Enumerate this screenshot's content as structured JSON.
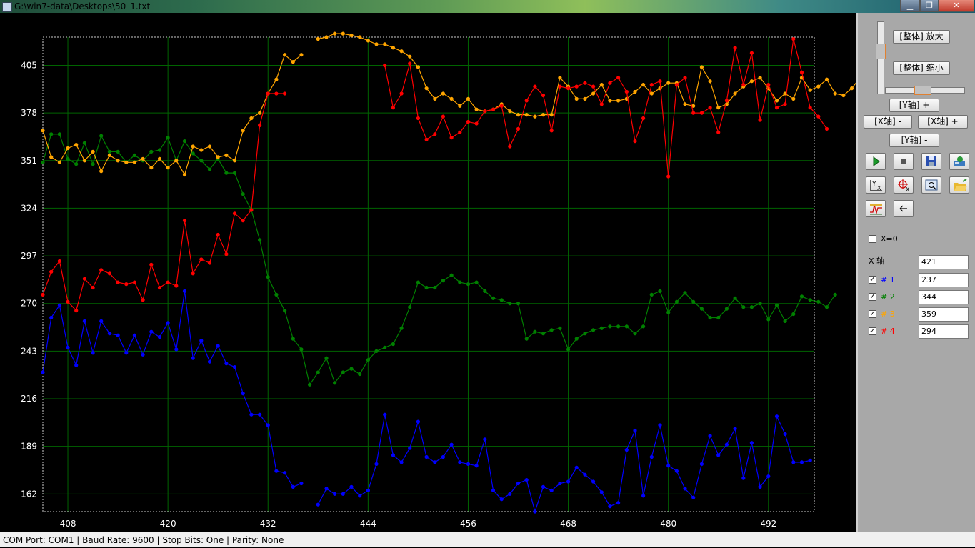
{
  "window": {
    "title": "G:\\win7-data\\Desktops\\50_1.txt",
    "min_glyph": "▁",
    "max_glyph": "❐",
    "close_glyph": "✕"
  },
  "status": "COM Port: COM1 | Baud Rate: 9600 | Stop Bits: One |  Parity: None",
  "panel": {
    "zoom_in_label": "[整体] 放大",
    "zoom_out_label": "[整体] 缩小",
    "y_plus_label": "[Y轴] +",
    "x_minus_label": "[X轴] -",
    "x_plus_label": "[X轴] +",
    "y_minus_label": "[Y轴] -",
    "x0_label": "X=0",
    "x_axis_label": "X 轴",
    "x_axis_value": "421",
    "channels": [
      {
        "label": "# 1",
        "value": "237",
        "checked": true,
        "color": "#0000ff"
      },
      {
        "label": "# 2",
        "value": "344",
        "checked": true,
        "color": "#008000"
      },
      {
        "label": "# 3",
        "value": "359",
        "checked": true,
        "color": "#ffa500"
      },
      {
        "label": "# 4",
        "value": "294",
        "checked": true,
        "color": "#ff0000"
      }
    ],
    "icons": [
      "play-icon",
      "stop-icon",
      "save-icon",
      "export-icon",
      "axis-x-y-icon",
      "crosshair-icon",
      "zoom-window-icon",
      "open-folder-icon",
      "waveform-icon",
      "back-arrow-icon"
    ]
  },
  "chart_data": {
    "type": "line",
    "grid": true,
    "background": "#000000",
    "grid_color": "#006400",
    "xlim": [
      405,
      497.5
    ],
    "ylim": [
      152,
      421
    ],
    "xticks": [
      408,
      420,
      432,
      444,
      456,
      468,
      480,
      492
    ],
    "yticks": [
      162,
      189,
      216,
      243,
      270,
      297,
      324,
      351,
      378,
      405
    ],
    "series": [
      {
        "color": "#0000ff",
        "segments": [
          {
            "x0": 405,
            "values": [
              231,
              262,
              269,
              245,
              235,
              260,
              242,
              260,
              253,
              252,
              242,
              252,
              241,
              254,
              251,
              259,
              244,
              277,
              239,
              249,
              237,
              246,
              236,
              234,
              219,
              207,
              207,
              201,
              175,
              174,
              166,
              168
            ]
          },
          {
            "x0": 438,
            "values": [
              156,
              165,
              162,
              162,
              166,
              161,
              164,
              179,
              207,
              184,
              180,
              188,
              203,
              183,
              180,
              183,
              190,
              180,
              179,
              178,
              193,
              164,
              159,
              162,
              168,
              170,
              152,
              166,
              164,
              168,
              169,
              177,
              173,
              169,
              163,
              155,
              157,
              187,
              198,
              161,
              183,
              201,
              178,
              175,
              165,
              160,
              179,
              195,
              184,
              190,
              199,
              171,
              191,
              166,
              172,
              206,
              196,
              180,
              180,
              181
            ]
          }
        ]
      },
      {
        "color": "#008000",
        "segments": [
          {
            "x0": 405,
            "values": [
              350,
              366,
              366,
              352,
              349,
              361,
              349,
              365,
              356,
              356,
              350,
              354,
              351,
              356,
              357,
              364,
              351,
              362,
              355,
              351,
              346,
              352,
              344,
              344,
              332,
              323,
              306,
              285,
              275,
              266,
              250,
              244,
              224,
              231,
              239,
              225,
              231,
              233,
              230,
              238,
              243,
              245,
              247,
              256,
              268,
              282,
              279,
              279,
              283,
              286,
              282,
              281,
              282,
              277,
              273,
              272,
              270,
              270,
              250,
              254,
              253,
              255,
              256,
              244,
              250,
              253,
              255,
              256,
              257,
              257,
              257,
              253,
              257,
              275,
              277,
              265,
              271,
              276,
              271,
              267,
              262,
              262,
              267,
              273,
              268,
              268,
              270,
              261,
              269,
              260,
              264,
              274,
              272,
              271,
              268,
              275
            ]
          }
        ]
      },
      {
        "color": "#ffa500",
        "segments": [
          {
            "x0": 405,
            "values": [
              368,
              353,
              350,
              358,
              360,
              351,
              356,
              345,
              354,
              351,
              350,
              350,
              352,
              347,
              352,
              347,
              351,
              343,
              359,
              357,
              359,
              353,
              354,
              351,
              368,
              375,
              378,
              389,
              397,
              411,
              407,
              411
            ]
          },
          {
            "x0": 438,
            "values": [
              420,
              421,
              423,
              423,
              422,
              421,
              419,
              417,
              417,
              415,
              413,
              410,
              404,
              392,
              386,
              389,
              386,
              382,
              386,
              380,
              379,
              380,
              383,
              379,
              377,
              377,
              376,
              377,
              377,
              398,
              393,
              386,
              386,
              389,
              394,
              385,
              385,
              386,
              390,
              394,
              389,
              392,
              395,
              395,
              383,
              382,
              404,
              396,
              381,
              383,
              389,
              393,
              396,
              398,
              392,
              385,
              389,
              386,
              398,
              391,
              393,
              397,
              389,
              388,
              392,
              398,
              398
            ]
          }
        ]
      },
      {
        "color": "#ff0000",
        "segments": [
          {
            "x0": 405,
            "values": [
              275,
              288,
              294,
              271,
              266,
              284,
              279,
              289,
              287,
              282,
              281,
              282,
              272,
              292,
              279,
              282,
              280,
              317,
              287,
              295,
              293,
              309,
              298,
              321,
              317,
              323,
              371,
              389,
              389,
              389
            ]
          },
          {
            "x0": 446,
            "values": [
              405,
              381,
              389,
              406,
              375,
              363,
              366,
              376,
              364,
              367,
              373,
              372,
              379,
              380,
              382,
              359,
              369,
              385,
              393,
              388,
              368,
              393,
              392,
              393,
              395,
              393,
              383,
              395,
              398,
              390,
              362,
              375,
              394,
              396,
              342,
              394,
              398,
              378,
              378,
              381,
              367,
              385,
              415,
              394,
              412,
              374,
              394,
              381,
              383,
              420,
              401,
              381,
              376,
              369
            ]
          }
        ]
      }
    ]
  }
}
